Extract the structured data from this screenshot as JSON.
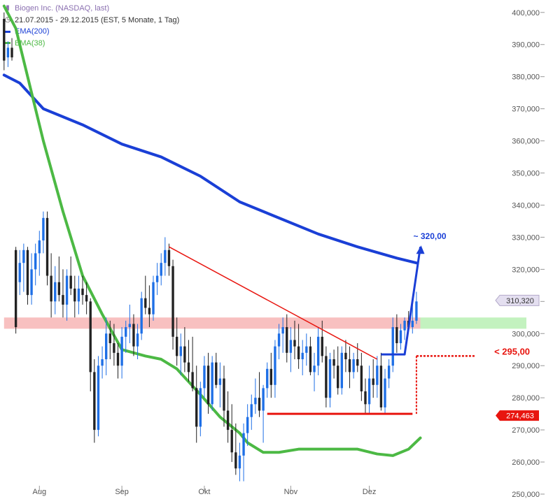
{
  "legend": {
    "title": "Biogen Inc. (NASDAQ, last)",
    "period": "21.07.2015 - 29.12.2015 (EST, 5 Monate, 1 Tag)",
    "ema200_label": "EMA(200)",
    "ema38_label": "EMA(38)"
  },
  "colors": {
    "up": "#1e6fe6",
    "down": "#222222",
    "ema200": "#1a3fd6",
    "ema38": "#4cb944",
    "trend": "#e8150f",
    "resistance_zone": "#f7b5b5",
    "target_zone": "#b9f0b4",
    "projection": "#1a3fd6",
    "last_price_bg": "#e4dff0",
    "support_price_bg": "#e8150f"
  },
  "annotations": {
    "target_label": "~ 320,00",
    "stop_label": "< 295,00",
    "last_price": "310,320",
    "support_price": "274,463"
  },
  "chart_data": {
    "type": "candlestick",
    "title": "Biogen Inc. (NASDAQ, last)",
    "subtitle": "21.07.2015 - 29.12.2015 (EST, 5 Monate, 1 Tag)",
    "x_tick_labels": [
      "Aug",
      "Sep",
      "Okt",
      "Nov",
      "Dez"
    ],
    "x_tick_days": [
      9,
      30,
      51,
      73,
      93
    ],
    "y_tick_labels": [
      "250,000",
      "260,000",
      "270,000",
      "280,000",
      "290,000",
      "300,000",
      "310,000",
      "320,000",
      "330,000",
      "340,000",
      "350,000",
      "360,000",
      "370,000",
      "380,000",
      "390,000",
      "400,000"
    ],
    "ylim": [
      250,
      403
    ],
    "x_range": [
      -0.5,
      133
    ],
    "grid": false,
    "legend_position": "top-left",
    "candles": [
      [
        398,
        400,
        382,
        385
      ],
      [
        386,
        391,
        383,
        389
      ],
      [
        389,
        392,
        385,
        386
      ],
      [
        326,
        327,
        300,
        302
      ],
      [
        316,
        326,
        312,
        322
      ],
      [
        322,
        328,
        313,
        326
      ],
      [
        326,
        327,
        309,
        312
      ],
      [
        312,
        325,
        309,
        320
      ],
      [
        320,
        328,
        315,
        325
      ],
      [
        325,
        332,
        318,
        329
      ],
      [
        329,
        338,
        325,
        336
      ],
      [
        336,
        338,
        315,
        318
      ],
      [
        318,
        325,
        305,
        310
      ],
      [
        310,
        321,
        306,
        316
      ],
      [
        316,
        324,
        310,
        312
      ],
      [
        312,
        320,
        305,
        309
      ],
      [
        309,
        320,
        304,
        318
      ],
      [
        318,
        324,
        312,
        314
      ],
      [
        314,
        318,
        305,
        310
      ],
      [
        310,
        318,
        306,
        314
      ],
      [
        314,
        318,
        309,
        312
      ],
      [
        312,
        316,
        306,
        310
      ],
      [
        310,
        311,
        282,
        288
      ],
      [
        288,
        292,
        266,
        270
      ],
      [
        270,
        293,
        268,
        290
      ],
      [
        290,
        296,
        286,
        292
      ],
      [
        292,
        305,
        287,
        300
      ],
      [
        300,
        304,
        292,
        297
      ],
      [
        297,
        303,
        290,
        294
      ],
      [
        294,
        297,
        286,
        290
      ],
      [
        290,
        302,
        286,
        299
      ],
      [
        299,
        304,
        294,
        302
      ],
      [
        302,
        309,
        297,
        303
      ],
      [
        303,
        306,
        293,
        296
      ],
      [
        296,
        303,
        292,
        300
      ],
      [
        300,
        313,
        298,
        311
      ],
      [
        311,
        318,
        306,
        308
      ],
      [
        308,
        315,
        302,
        306
      ],
      [
        306,
        318,
        304,
        316
      ],
      [
        316,
        322,
        312,
        318
      ],
      [
        318,
        325,
        315,
        322
      ],
      [
        322,
        330,
        318,
        326
      ],
      [
        326,
        328,
        318,
        321
      ],
      [
        321,
        323,
        295,
        299
      ],
      [
        299,
        305,
        290,
        293
      ],
      [
        293,
        300,
        287,
        296
      ],
      [
        296,
        302,
        288,
        291
      ],
      [
        291,
        298,
        285,
        288
      ],
      [
        288,
        299,
        282,
        283
      ],
      [
        283,
        290,
        266,
        271
      ],
      [
        271,
        285,
        268,
        283
      ],
      [
        283,
        293,
        280,
        290
      ],
      [
        290,
        294,
        275,
        278
      ],
      [
        278,
        293,
        276,
        291
      ],
      [
        291,
        294,
        283,
        284
      ],
      [
        284,
        291,
        277,
        286
      ],
      [
        286,
        290,
        271,
        276
      ],
      [
        276,
        282,
        266,
        270
      ],
      [
        270,
        278,
        260,
        263
      ],
      [
        263,
        272,
        256,
        258
      ],
      [
        258,
        266,
        254,
        262
      ],
      [
        262,
        272,
        254,
        269
      ],
      [
        269,
        278,
        265,
        274
      ],
      [
        274,
        281,
        270,
        278
      ],
      [
        278,
        286,
        275,
        280
      ],
      [
        280,
        288,
        274,
        276
      ],
      [
        276,
        284,
        266,
        283
      ],
      [
        283,
        291,
        280,
        289
      ],
      [
        289,
        294,
        280,
        284
      ],
      [
        284,
        298,
        280,
        296
      ],
      [
        296,
        303,
        292,
        300
      ],
      [
        300,
        305,
        294,
        302
      ],
      [
        302,
        306,
        291,
        294
      ],
      [
        294,
        302,
        288,
        298
      ],
      [
        298,
        304,
        292,
        296
      ],
      [
        296,
        303,
        289,
        292
      ],
      [
        292,
        298,
        287,
        294
      ],
      [
        294,
        300,
        290,
        296
      ],
      [
        296,
        299,
        287,
        288
      ],
      [
        288,
        294,
        282,
        290
      ],
      [
        290,
        302,
        287,
        299
      ],
      [
        299,
        304,
        291,
        293
      ],
      [
        293,
        296,
        277,
        280
      ],
      [
        280,
        294,
        277,
        292
      ],
      [
        292,
        295,
        286,
        290
      ],
      [
        290,
        296,
        281,
        283
      ],
      [
        283,
        296,
        281,
        294
      ],
      [
        294,
        298,
        288,
        292
      ],
      [
        292,
        296,
        283,
        288
      ],
      [
        288,
        294,
        286,
        292
      ],
      [
        292,
        297,
        288,
        290
      ],
      [
        290,
        294,
        279,
        282
      ],
      [
        282,
        286,
        275,
        278
      ],
      [
        278,
        290,
        275,
        286
      ],
      [
        286,
        292,
        280,
        284
      ],
      [
        284,
        293,
        280,
        290
      ],
      [
        290,
        294,
        276,
        277
      ],
      [
        277,
        289,
        275,
        286
      ],
      [
        286,
        292,
        283,
        290
      ],
      [
        290,
        305,
        288,
        302
      ],
      [
        302,
        306,
        294,
        297
      ],
      [
        297,
        303,
        295,
        301
      ],
      [
        301,
        305,
        298,
        304
      ],
      [
        304,
        307,
        301,
        302
      ],
      [
        302,
        309,
        300,
        304
      ],
      [
        304,
        313,
        303,
        310
      ]
    ],
    "series": [
      {
        "name": "EMA(200)",
        "x": [
          0,
          4,
          10,
          20,
          30,
          40,
          50,
          60,
          70,
          80,
          90,
          100,
          105
        ],
        "values": [
          380.5,
          378,
          370,
          365,
          359,
          355,
          349,
          341,
          336,
          331,
          327,
          323.5,
          322
        ]
      },
      {
        "name": "EMA(38)",
        "x": [
          0,
          3,
          6,
          10,
          15,
          20,
          25,
          30,
          33,
          36,
          40,
          44,
          50,
          55,
          60,
          62,
          66,
          70,
          75,
          80,
          85,
          90,
          95,
          99,
          103,
          106
        ],
        "values": [
          402,
          395,
          380,
          360,
          338,
          318,
          306,
          295,
          294,
          293,
          292,
          289,
          281,
          274,
          269,
          266,
          263,
          263,
          264,
          264,
          264,
          264,
          262.5,
          262,
          264,
          267.5
        ]
      }
    ],
    "trend_lines": [
      {
        "name": "downtrend",
        "x": [
          42,
          95
        ],
        "y": [
          327,
          292
        ]
      },
      {
        "name": "support",
        "x": [
          67,
          104
        ],
        "y": [
          275,
          275
        ]
      }
    ],
    "zones": [
      {
        "name": "resistance",
        "x": [
          0,
          106
        ],
        "y": [
          301.5,
          305
        ]
      },
      {
        "name": "target-zone",
        "x": [
          106,
          133
        ],
        "y": [
          301.5,
          305
        ]
      }
    ],
    "projection": {
      "x": [
        96,
        102,
        106
      ],
      "y": [
        293.5,
        293.5,
        327
      ]
    },
    "stop_line": {
      "x": [
        105,
        120
      ],
      "y": [
        293,
        293
      ]
    }
  }
}
